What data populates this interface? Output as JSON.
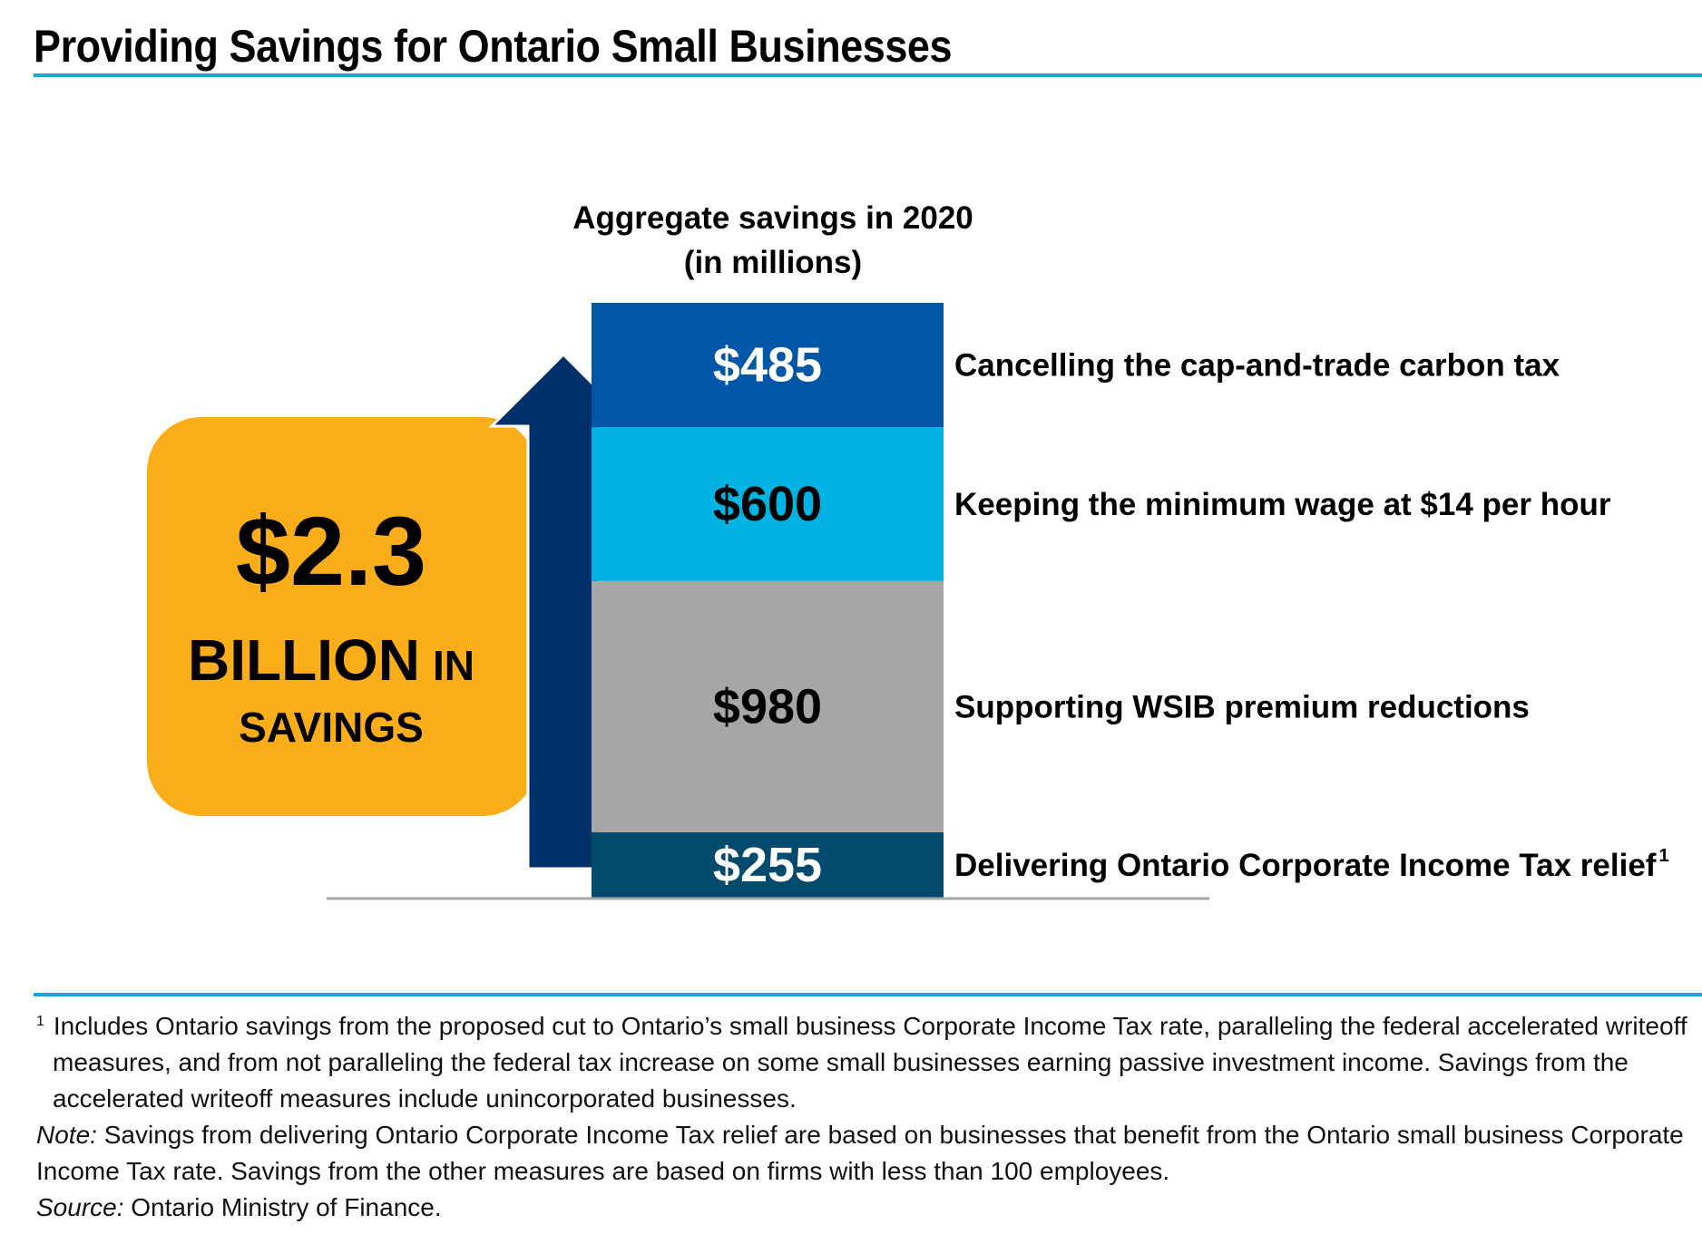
{
  "header": {
    "title": "Providing Savings for Ontario Small Businesses"
  },
  "chart_data": {
    "type": "bar",
    "stacked": true,
    "title": "Aggregate savings in 2020",
    "subtitle": "(in millions)",
    "unit": "$ millions",
    "categories": [
      "Aggregate savings in 2020"
    ],
    "series": [
      {
        "name": "Delivering Ontario Corporate Income Tax relief",
        "superscript": "1",
        "value": 255,
        "display": "$255",
        "color": "#004a6d",
        "label_color": "#ffffff"
      },
      {
        "name": "Supporting WSIB premium reductions",
        "value": 980,
        "display": "$980",
        "color": "#a6a6a6",
        "label_color": "#000000"
      },
      {
        "name": "Keeping the minimum wage at $14 per hour",
        "value": 600,
        "display": "$600",
        "color": "#00b3e2",
        "label_color": "#000000"
      },
      {
        "name": "Cancelling the cap-and-trade carbon tax",
        "value": 485,
        "display": "$485",
        "color": "#0057a8",
        "label_color": "#ffffff"
      }
    ],
    "total_callout": {
      "amount": "$2.3",
      "line2_big": "BILLION",
      "line2_small": "IN",
      "line3": "SAVINGS",
      "color": "#fbae1a",
      "arrow_color": "#00316b"
    }
  },
  "footnotes": {
    "note1_marker": "1",
    "note1_text": "Includes Ontario savings from the proposed cut to Ontario’s small business Corporate Income Tax rate, paralleling the federal accelerated writeoff measures, and from not paralleling the federal tax increase on some small businesses earning passive investment income. Savings from the accelerated writeoff measures include unincorporated businesses.",
    "note_label": "Note:",
    "note_text": "Savings from delivering Ontario Corporate Income Tax relief are based on businesses that benefit from the Ontario small business Corporate Income Tax rate. Savings from the other measures are based on firms with less than 100 employees.",
    "source_label": "Source:",
    "source_text": "Ontario Ministry of Finance."
  },
  "colors": {
    "accent_rule": "#12a8d8",
    "baseline": "#a6a6a6"
  }
}
